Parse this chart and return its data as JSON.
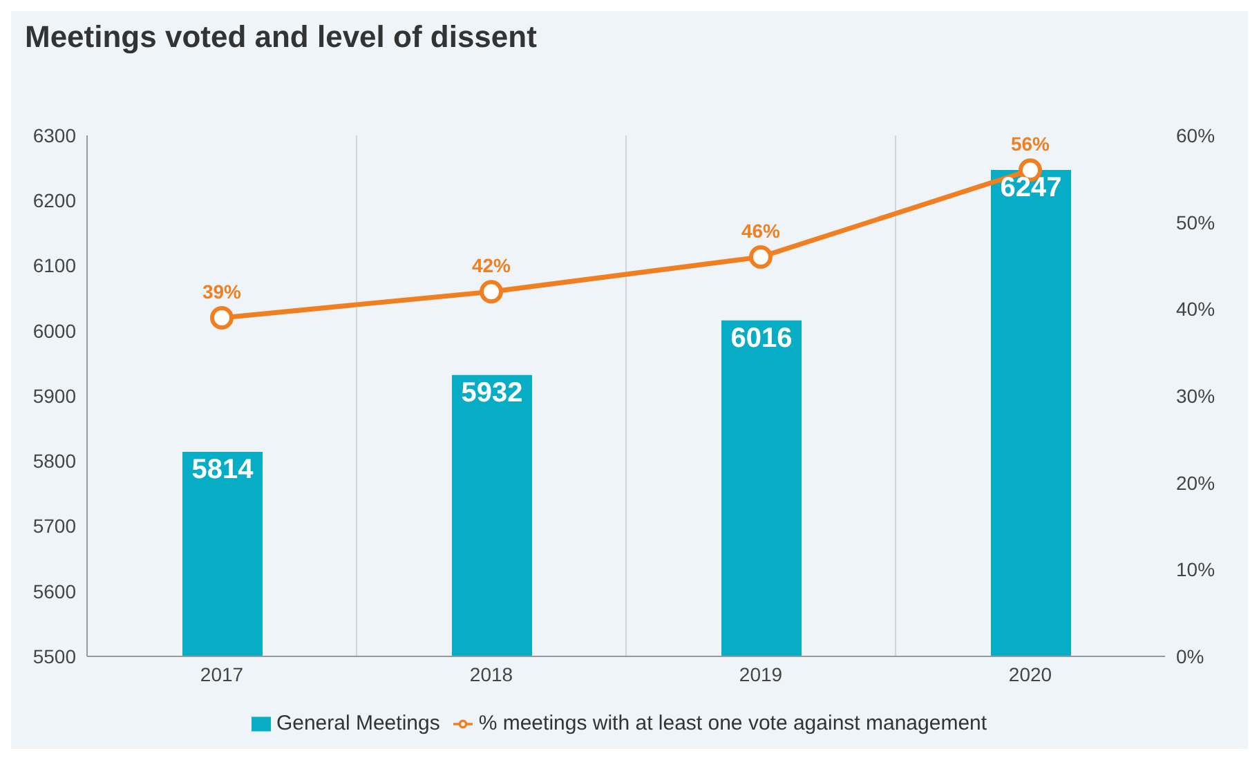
{
  "chart_data": {
    "type": "bar",
    "title": "Meetings voted and level of dissent",
    "categories": [
      "2017",
      "2018",
      "2019",
      "2020"
    ],
    "series": [
      {
        "name": "General Meetings",
        "color": "#06adc4",
        "values": [
          5814,
          5932,
          6016,
          6247
        ],
        "value_labels": [
          "5814",
          "5932",
          "6016",
          "6247"
        ]
      },
      {
        "name": "% meetings with at least one vote against management",
        "type": "line",
        "axis": "y2",
        "color": "#f07f22",
        "values": [
          39,
          42,
          46,
          56
        ],
        "value_labels": [
          "39%",
          "42%",
          "46%",
          "56%"
        ],
        "marker": "circle"
      }
    ],
    "ylim": [
      5500,
      6300
    ],
    "yticks": [
      5500,
      5600,
      5700,
      5800,
      5900,
      6000,
      6100,
      6200,
      6300
    ],
    "y2lim": [
      0,
      60
    ],
    "y2ticks": [
      {
        "value": 0,
        "label": "0%"
      },
      {
        "value": 10,
        "label": "10%"
      },
      {
        "value": 20,
        "label": "20%"
      },
      {
        "value": 30,
        "label": "30%"
      },
      {
        "value": 40,
        "label": "40%"
      },
      {
        "value": 50,
        "label": "50%"
      },
      {
        "value": 60,
        "label": "60%"
      }
    ],
    "grid": "x",
    "legend": "bottom"
  }
}
